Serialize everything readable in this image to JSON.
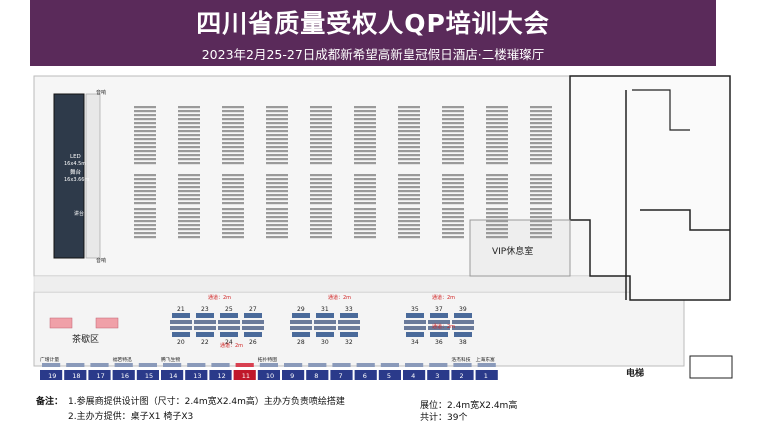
{
  "header": {
    "title": "四川省质量受权人QP培训大会",
    "subtitle": "2023年2月25-27日成都新希望高新皇冠假日酒店·二楼璀璨厅"
  },
  "colors": {
    "header_bg": "#5a2a5a",
    "booth_blue": "#2a3a8a",
    "booth_red": "#c0182a",
    "tea_pink": "#f0a0a8",
    "aisle_red": "#d02020"
  },
  "floor": {
    "led_label": "LED",
    "led_size": "16x4.5m",
    "stage_label": "舞台",
    "stage_size": "16x3.66m",
    "lectern": "讲台",
    "speaker_top": "音响",
    "speaker_bottom": "音响",
    "vip_room": "VIP休息室",
    "tea_area": "茶歇区",
    "elevator": "电梯",
    "aisle_label": "通道：2m"
  },
  "booths_top": [
    "21",
    "23",
    "25",
    "27",
    "29",
    "31",
    "33",
    "35",
    "37",
    "39"
  ],
  "booths_mid": [
    "20",
    "22",
    "24",
    "26",
    "28",
    "30",
    "32",
    "34",
    "36",
    "38"
  ],
  "booths_bottom": [
    "19",
    "18",
    "17",
    "16",
    "15",
    "14",
    "13",
    "12",
    "11",
    "10",
    "9",
    "8",
    "7",
    "6",
    "5",
    "4",
    "3",
    "2",
    "1"
  ],
  "booth_names_bottom": [
    "广增计量",
    "",
    "",
    "福若特迅",
    "",
    "腾飞生物",
    "",
    "",
    "",
    "拓扑特图",
    "",
    "",
    "",
    "",
    "",
    "",
    "",
    "洛杰科技",
    "上海东富"
  ],
  "notes": {
    "label": "备注：",
    "line1": "1.参展商提供设计图（尺寸：2.4m宽X2.4m高）主办方负责喷绘搭建",
    "line2": "2.主办方提供：桌子X1  椅子X3",
    "booth_size": "展位：2.4m宽X2.4m高",
    "total": "共计：39个"
  }
}
